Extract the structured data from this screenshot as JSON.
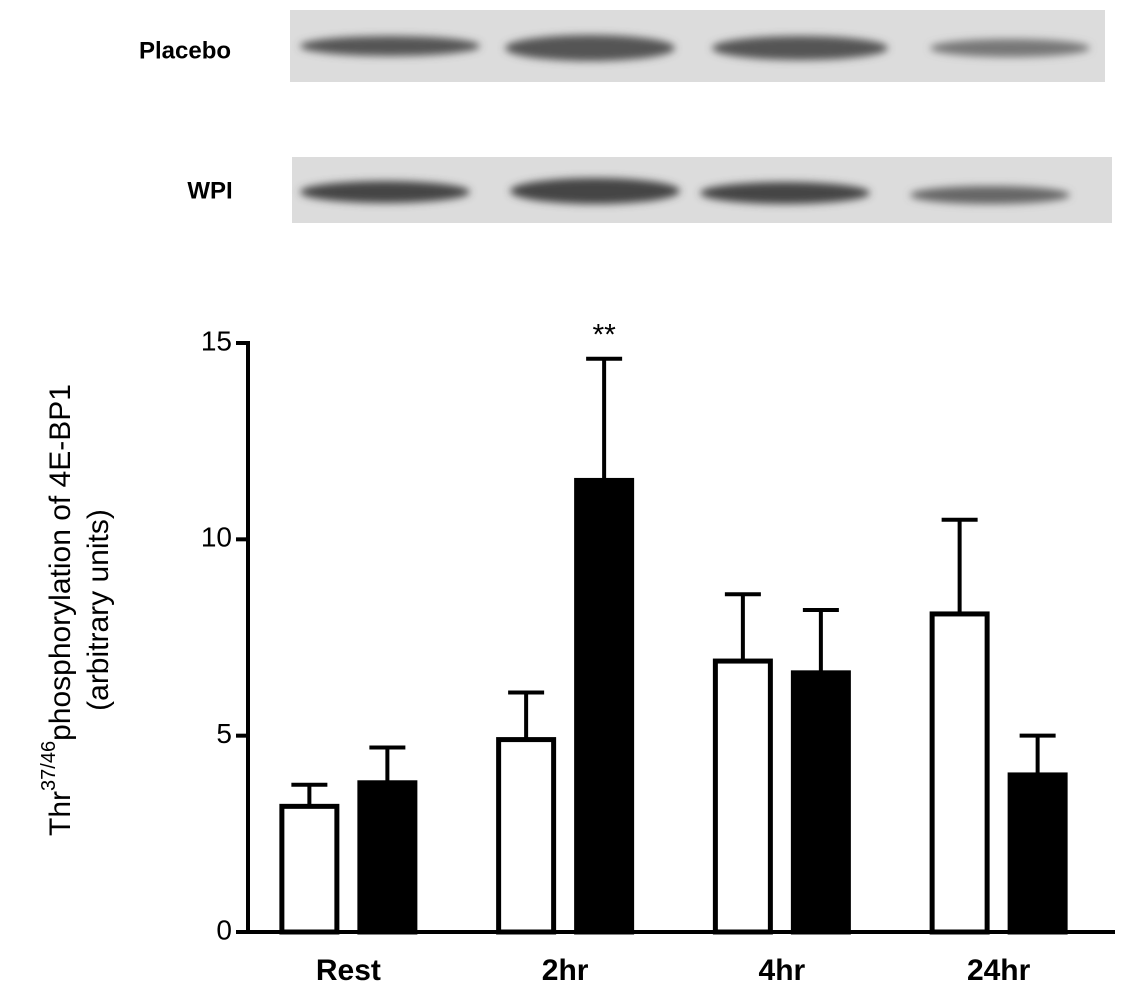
{
  "chart_data": {
    "type": "bar",
    "y_label": {
      "base": "Thr",
      "sup": "37/46",
      "rest": "phosphorylation of 4E-BP1",
      "line2": "(arbitrary units)"
    },
    "categories": [
      "Rest",
      "2hr",
      "4hr",
      "24hr"
    ],
    "series": [
      {
        "name": "Placebo",
        "color": "#ffffff",
        "values": [
          3.2,
          4.9,
          6.9,
          8.1
        ],
        "errors": [
          0.55,
          1.2,
          1.7,
          2.4
        ]
      },
      {
        "name": "WPI",
        "color": "#000000",
        "values": [
          3.8,
          11.5,
          6.6,
          4.0
        ],
        "errors": [
          0.9,
          3.1,
          1.6,
          1.0
        ]
      }
    ],
    "annotation": {
      "text": "**",
      "series": 1,
      "category": 1
    },
    "ylim": [
      0,
      15
    ],
    "yticks": [
      0,
      5,
      10,
      15
    ],
    "grid": false
  }
}
